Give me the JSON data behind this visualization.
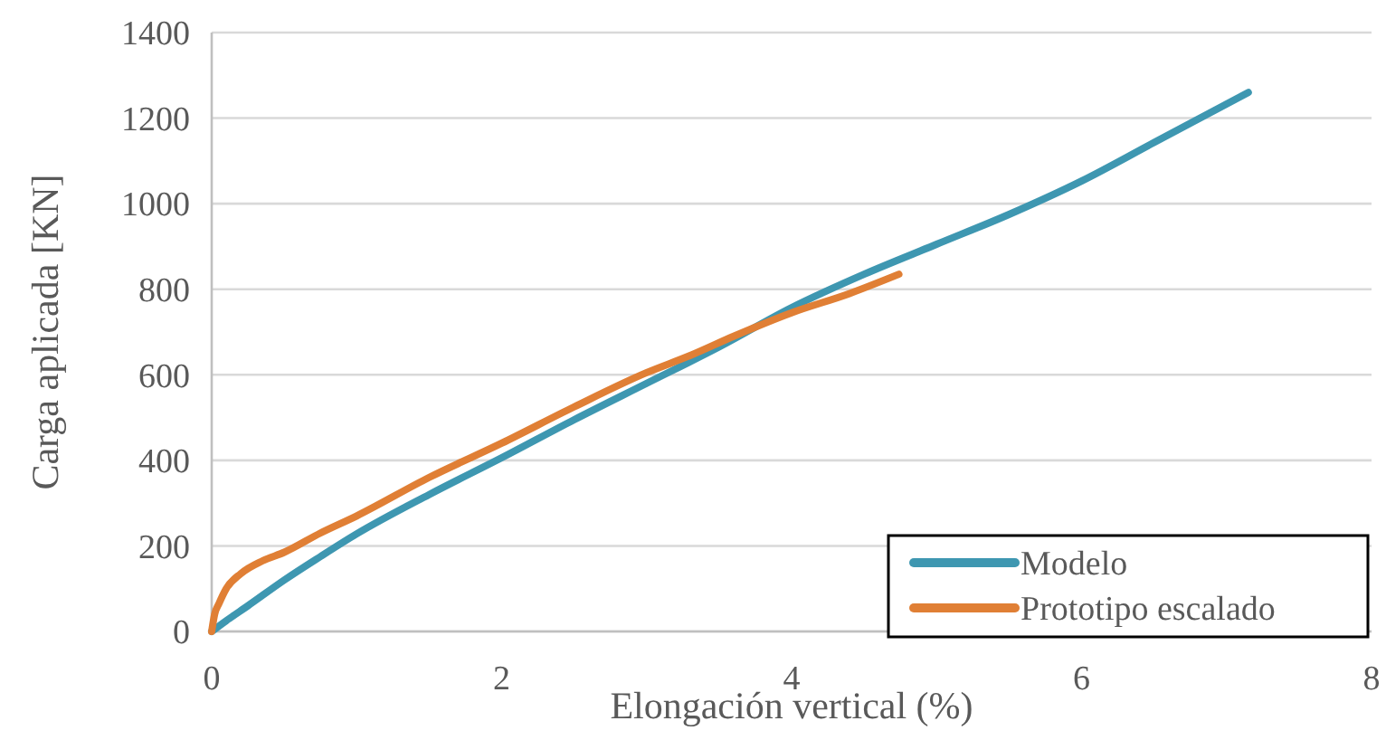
{
  "chart_data": {
    "type": "line",
    "xlabel": "Elongación vertical (%)",
    "ylabel": "Carga aplicada [KN]",
    "xlim": [
      0,
      8
    ],
    "xticks": [
      0,
      2,
      4,
      6,
      8
    ],
    "ylim": [
      0,
      1400
    ],
    "yticks": [
      0,
      200,
      400,
      600,
      800,
      1000,
      1200,
      1400
    ],
    "grid": "y",
    "legend": "bottom right",
    "line_style": "solid",
    "marker": "none",
    "series": [
      {
        "name": "Modelo",
        "color": "#3e97b1",
        "x": [
          0,
          0.1,
          0.25,
          0.5,
          0.75,
          1,
          1.5,
          2,
          2.5,
          3,
          3.5,
          4,
          4.5,
          5,
          5.5,
          6,
          6.5,
          7,
          7.15
        ],
        "values": [
          0,
          25,
          60,
          120,
          175,
          228,
          320,
          406,
          495,
          580,
          665,
          757,
          835,
          905,
          975,
          1053,
          1143,
          1233,
          1260
        ]
      },
      {
        "name": "Prototipo escalado",
        "color": "#e07f35",
        "x": [
          0,
          0.02,
          0.05,
          0.1,
          0.2,
          0.35,
          0.5,
          0.75,
          1,
          1.5,
          2,
          2.5,
          3,
          3.3,
          3.6,
          4,
          4.4,
          4.74
        ],
        "values": [
          0,
          40,
          65,
          100,
          135,
          165,
          185,
          230,
          270,
          360,
          440,
          525,
          605,
          645,
          690,
          745,
          790,
          835
        ]
      }
    ]
  }
}
